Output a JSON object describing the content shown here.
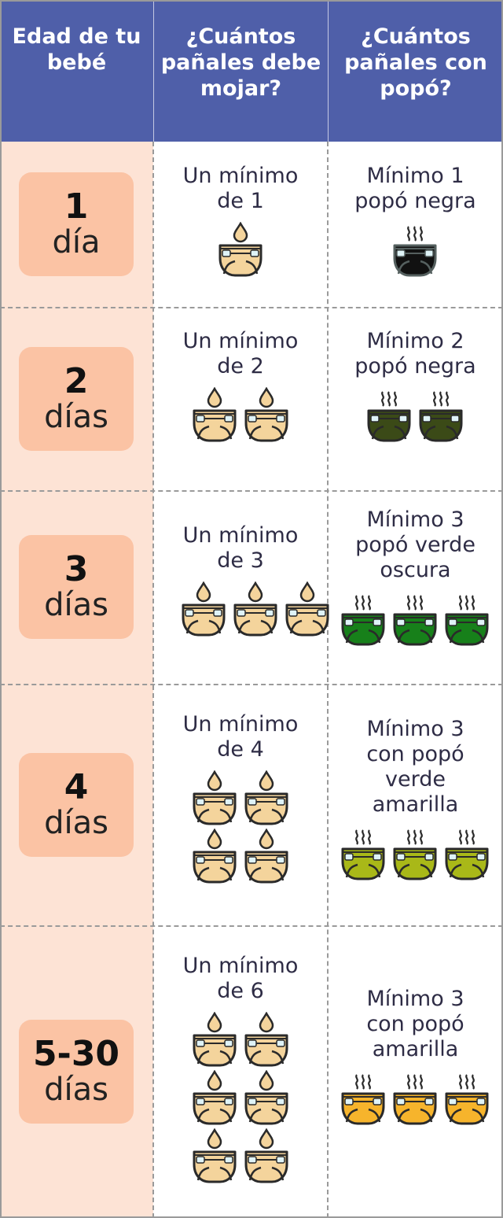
{
  "header": {
    "age": "Edad de tu bebé",
    "wet": "¿Cuántos pañales debe mojar?",
    "poop": "¿Cuántos pañales con popó?"
  },
  "colors": {
    "header": "#4f5fa9",
    "age_column": "#fde3d5",
    "badge": "#fbc3a4",
    "wet_diaper": "#f4d49c"
  },
  "rows": [
    {
      "age_num": "1",
      "age_unit": "día",
      "wet_text": "Un mínimo de 1",
      "wet_count": 1,
      "poop_text": "Mínimo 1 popó negra",
      "poop_count": 1,
      "poop_color": "#111111"
    },
    {
      "age_num": "2",
      "age_unit": "días",
      "wet_text": "Un mínimo de 2",
      "wet_count": 2,
      "poop_text": "Mínimo 2 popó negra",
      "poop_count": 2,
      "poop_color": "#3b4a17"
    },
    {
      "age_num": "3",
      "age_unit": "días",
      "wet_text": "Un mínimo de 3",
      "wet_count": 3,
      "poop_text": "Mínimo 3 popó verde oscura",
      "poop_count": 3,
      "poop_color": "#17801a"
    },
    {
      "age_num": "4",
      "age_unit": "días",
      "wet_text": "Un mínimo de 4",
      "wet_count": 4,
      "poop_text": "Mínimo 3 con popó verde amarilla",
      "poop_count": 3,
      "poop_color": "#a9b818"
    },
    {
      "age_num": "5-30",
      "age_unit": "días",
      "wet_text": "Un mínimo de 6",
      "wet_count": 6,
      "poop_text": "Mínimo 3 con popó amarilla",
      "poop_count": 3,
      "poop_color": "#f6b42c"
    }
  ]
}
